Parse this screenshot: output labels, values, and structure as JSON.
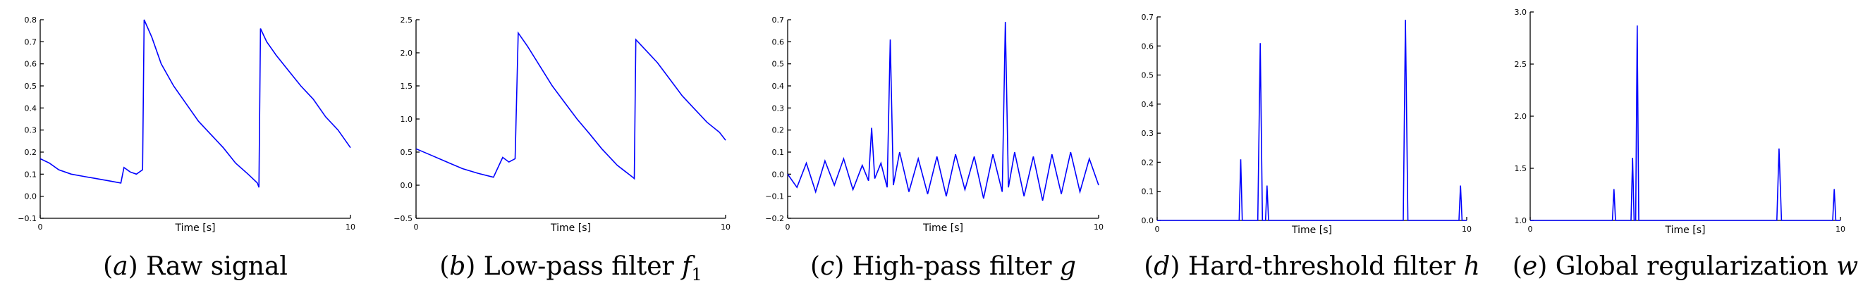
{
  "chart_data": [
    {
      "type": "line",
      "title": "",
      "caption": "(a) Raw signal",
      "xlabel": "Time [s]",
      "ylabel": "",
      "xlim": [
        0,
        10
      ],
      "ylim": [
        -0.1,
        0.8
      ],
      "xticks": [
        "0",
        "10"
      ],
      "yticks": [
        "−0.1",
        "0.0",
        "0.1",
        "0.2",
        "0.3",
        "0.4",
        "0.5",
        "0.6",
        "0.7",
        "0.8"
      ],
      "series": [
        {
          "color": "#0000ff",
          "x": [
            0.0,
            0.3,
            0.6,
            1.0,
            1.4,
            1.8,
            2.2,
            2.6,
            2.7,
            2.9,
            3.1,
            3.3,
            3.35,
            3.6,
            3.9,
            4.3,
            4.7,
            5.1,
            5.5,
            5.9,
            6.3,
            6.7,
            7.0,
            7.05,
            7.1,
            7.3,
            7.6,
            8.0,
            8.4,
            8.8,
            9.2,
            9.6,
            10.0
          ],
          "y": [
            0.17,
            0.15,
            0.12,
            0.1,
            0.09,
            0.08,
            0.07,
            0.06,
            0.13,
            0.11,
            0.1,
            0.12,
            0.8,
            0.72,
            0.6,
            0.5,
            0.42,
            0.34,
            0.28,
            0.22,
            0.15,
            0.1,
            0.06,
            0.04,
            0.76,
            0.7,
            0.64,
            0.57,
            0.5,
            0.44,
            0.36,
            0.3,
            0.22
          ]
        }
      ]
    },
    {
      "type": "line",
      "title": "",
      "caption": "(b) Low-pass filter f1",
      "xlabel": "Time [s]",
      "ylabel": "",
      "xlim": [
        0,
        10
      ],
      "ylim": [
        -0.5,
        2.5
      ],
      "xticks": [
        "0",
        "10"
      ],
      "yticks": [
        "−0.5",
        "0.0",
        "0.5",
        "1.0",
        "1.5",
        "2.0",
        "2.5"
      ],
      "series": [
        {
          "color": "#0000ff",
          "x": [
            0.0,
            0.5,
            1.0,
            1.5,
            2.0,
            2.5,
            2.8,
            3.0,
            3.2,
            3.3,
            3.6,
            4.0,
            4.4,
            4.8,
            5.2,
            5.6,
            6.0,
            6.5,
            7.0,
            7.05,
            7.1,
            7.4,
            7.8,
            8.2,
            8.6,
            9.0,
            9.4,
            9.8,
            10.0
          ],
          "y": [
            0.55,
            0.45,
            0.35,
            0.25,
            0.18,
            0.12,
            0.42,
            0.35,
            0.4,
            2.3,
            2.1,
            1.8,
            1.5,
            1.25,
            1.0,
            0.78,
            0.55,
            0.3,
            0.12,
            0.1,
            2.2,
            2.05,
            1.85,
            1.6,
            1.35,
            1.15,
            0.95,
            0.8,
            0.68
          ]
        }
      ]
    },
    {
      "type": "line",
      "title": "",
      "caption": "(c) High-pass filter g",
      "xlabel": "Time [s]",
      "ylabel": "",
      "xlim": [
        0,
        10
      ],
      "ylim": [
        -0.2,
        0.7
      ],
      "xticks": [
        "0",
        "10"
      ],
      "yticks": [
        "−0.2",
        "−0.1",
        "0.0",
        "0.1",
        "0.2",
        "0.3",
        "0.4",
        "0.5",
        "0.6",
        "0.7"
      ],
      "series": [
        {
          "color": "#0000ff",
          "x": [
            0.0,
            0.3,
            0.6,
            0.9,
            1.2,
            1.5,
            1.8,
            2.1,
            2.4,
            2.6,
            2.7,
            2.8,
            3.0,
            3.2,
            3.3,
            3.4,
            3.6,
            3.9,
            4.2,
            4.5,
            4.8,
            5.1,
            5.4,
            5.7,
            6.0,
            6.3,
            6.6,
            6.9,
            7.0,
            7.1,
            7.3,
            7.6,
            7.9,
            8.2,
            8.5,
            8.8,
            9.1,
            9.4,
            9.7,
            10.0
          ],
          "y": [
            0.0,
            -0.06,
            0.05,
            -0.08,
            0.06,
            -0.05,
            0.07,
            -0.07,
            0.04,
            -0.03,
            0.21,
            -0.02,
            0.05,
            -0.06,
            0.61,
            -0.05,
            0.1,
            -0.08,
            0.07,
            -0.09,
            0.08,
            -0.1,
            0.09,
            -0.07,
            0.08,
            -0.11,
            0.09,
            -0.08,
            0.69,
            -0.06,
            0.1,
            -0.1,
            0.08,
            -0.12,
            0.09,
            -0.09,
            0.1,
            -0.08,
            0.07,
            -0.05
          ]
        }
      ]
    },
    {
      "type": "line",
      "title": "",
      "caption": "(d) Hard-threshold filter h",
      "xlabel": "Time [s]",
      "ylabel": "",
      "xlim": [
        0,
        10
      ],
      "ylim": [
        0.0,
        0.7
      ],
      "xticks": [
        "0",
        "10"
      ],
      "yticks": [
        "0.0",
        "0.1",
        "0.2",
        "0.3",
        "0.4",
        "0.5",
        "0.6",
        "0.7"
      ],
      "series": [
        {
          "color": "#0000ff",
          "x": [
            0.0,
            2.65,
            2.7,
            2.75,
            3.25,
            3.33,
            3.4,
            3.5,
            3.55,
            3.6,
            7.95,
            8.02,
            8.1,
            9.75,
            9.8,
            9.85,
            10.0
          ],
          "y": [
            0.0,
            0.0,
            0.21,
            0.0,
            0.0,
            0.61,
            0.0,
            0.0,
            0.12,
            0.0,
            0.0,
            0.69,
            0.0,
            0.0,
            0.12,
            0.0,
            0.0
          ]
        }
      ]
    },
    {
      "type": "line",
      "title": "",
      "caption": "(e) Global regularization w",
      "xlabel": "Time [s]",
      "ylabel": "",
      "xlim": [
        0,
        10
      ],
      "ylim": [
        1.0,
        3.0
      ],
      "xticks": [
        "0",
        "10"
      ],
      "yticks": [
        "1.0",
        "1.5",
        "2.0",
        "2.5",
        "3.0"
      ],
      "series": [
        {
          "color": "#0000ff",
          "x": [
            0.0,
            2.65,
            2.7,
            2.75,
            3.25,
            3.3,
            3.35,
            3.4,
            3.45,
            3.5,
            7.95,
            8.02,
            8.1,
            9.75,
            9.8,
            9.85,
            10.0
          ],
          "y": [
            1.0,
            1.0,
            1.3,
            1.0,
            1.0,
            1.6,
            1.0,
            1.0,
            2.87,
            1.0,
            1.0,
            1.69,
            1.0,
            1.0,
            1.3,
            1.0,
            1.0
          ]
        }
      ]
    }
  ]
}
